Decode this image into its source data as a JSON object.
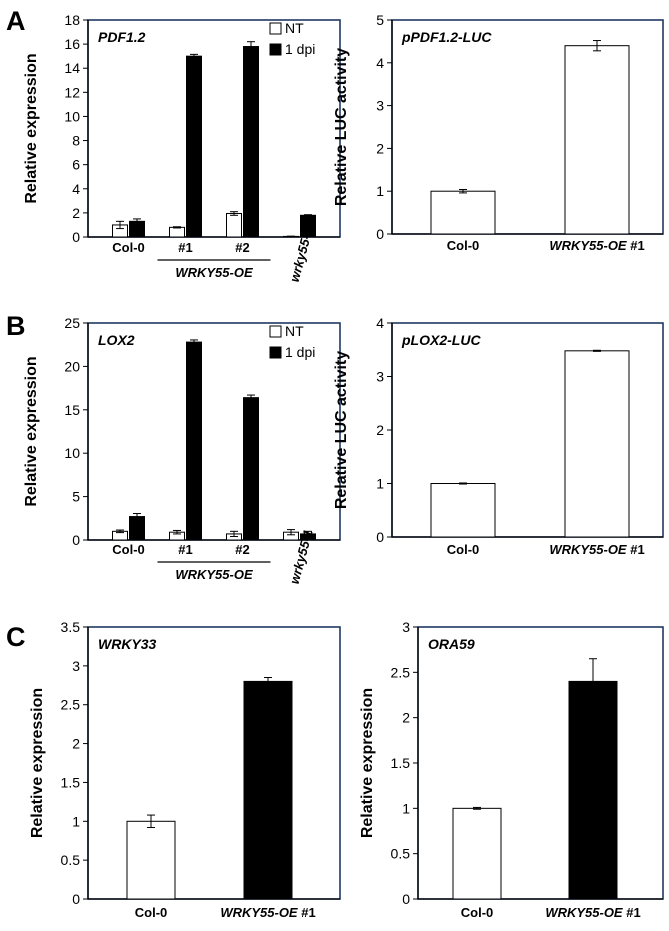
{
  "panels": {
    "A": "A",
    "B": "B",
    "C": "C"
  },
  "chart_data": [
    {
      "id": "A1",
      "type": "bar",
      "panel": "A",
      "gene_label": "PDF1.2",
      "ylabel": "Relative expression",
      "ylim": [
        0,
        18
      ],
      "yticks": [
        0,
        2,
        4,
        6,
        8,
        10,
        12,
        14,
        16,
        18
      ],
      "categories": [
        "Col-0",
        "#1",
        "#2",
        "wrky55-1"
      ],
      "group_label": "WRKY55-OE",
      "series": [
        {
          "name": "NT",
          "color": "#ffffff",
          "values": [
            1.0,
            0.8,
            1.95,
            0.05
          ],
          "errors": [
            0.3,
            0.05,
            0.15,
            0.02
          ]
        },
        {
          "name": "1 dpi",
          "color": "#000000",
          "values": [
            1.3,
            15.0,
            15.8,
            1.8
          ],
          "errors": [
            0.2,
            0.15,
            0.4,
            0.05
          ]
        }
      ],
      "legend": "top-right"
    },
    {
      "id": "A2",
      "type": "bar",
      "panel": "A",
      "gene_label": "pPDF1.2-LUC",
      "ylabel": "Relative LUC activity",
      "ylim": [
        0,
        5
      ],
      "yticks": [
        0,
        1,
        2,
        3,
        4,
        5
      ],
      "categories": [
        "Col-0",
        "WRKY55-OE #1"
      ],
      "series": [
        {
          "color": "#ffffff",
          "values": [
            1.0,
            4.4
          ],
          "errors": [
            0.04,
            0.12
          ]
        }
      ]
    },
    {
      "id": "B1",
      "type": "bar",
      "panel": "B",
      "gene_label": "LOX2",
      "ylabel": "Relative expression",
      "ylim": [
        0,
        25
      ],
      "yticks": [
        0,
        5,
        10,
        15,
        20,
        25
      ],
      "categories": [
        "Col-0",
        "#1",
        "#2",
        "wrky55-1"
      ],
      "group_label": "WRKY55-OE",
      "series": [
        {
          "name": "NT",
          "color": "#ffffff",
          "values": [
            1.0,
            0.9,
            0.7,
            0.9
          ],
          "errors": [
            0.15,
            0.2,
            0.3,
            0.3
          ]
        },
        {
          "name": "1 dpi",
          "color": "#000000",
          "values": [
            2.7,
            22.8,
            16.4,
            0.7
          ],
          "errors": [
            0.35,
            0.25,
            0.3,
            0.3
          ]
        }
      ],
      "legend": "top-right"
    },
    {
      "id": "B2",
      "type": "bar",
      "panel": "B",
      "gene_label": "pLOX2-LUC",
      "ylabel": "Relative LUC activity",
      "ylim": [
        0,
        4
      ],
      "yticks": [
        0,
        1,
        2,
        3,
        4
      ],
      "categories": [
        "Col-0",
        "WRKY55-OE #1"
      ],
      "series": [
        {
          "color": "#ffffff",
          "values": [
            1.0,
            3.48
          ],
          "errors": [
            0.01,
            0.01
          ]
        }
      ]
    },
    {
      "id": "C1",
      "type": "bar",
      "panel": "C",
      "gene_label": "WRKY33",
      "ylabel": "Relative expression",
      "ylim": [
        0,
        3.5
      ],
      "yticks": [
        0,
        0.5,
        1,
        1.5,
        2,
        2.5,
        3,
        3.5
      ],
      "categories": [
        "Col-0",
        "WRKY55-OE #1"
      ],
      "series": [
        {
          "colors": [
            "#ffffff",
            "#000000"
          ],
          "values": [
            1.0,
            2.8
          ],
          "errors": [
            0.08,
            0.05
          ]
        }
      ]
    },
    {
      "id": "C2",
      "type": "bar",
      "panel": "C",
      "gene_label": "ORA59",
      "ylabel": "Relative expression",
      "ylim": [
        0,
        3
      ],
      "yticks": [
        0,
        0.5,
        1,
        1.5,
        2,
        2.5,
        3
      ],
      "categories": [
        "Col-0",
        "WRKY55-OE #1"
      ],
      "series": [
        {
          "colors": [
            "#ffffff",
            "#000000"
          ],
          "values": [
            1.0,
            2.4
          ],
          "errors": [
            0.01,
            0.25
          ]
        }
      ]
    }
  ]
}
